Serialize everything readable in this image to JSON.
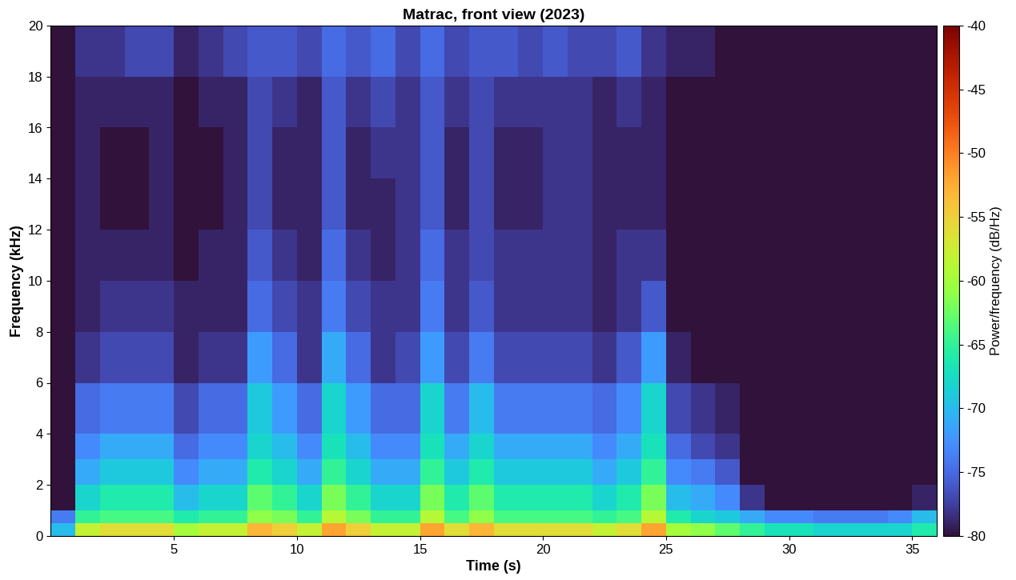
{
  "chart_data": {
    "type": "heatmap",
    "title": "Matrac, front view (2023)",
    "x_label": "Time (s)",
    "y_label": "Frequency (kHz)",
    "xlim": [
      0,
      36
    ],
    "xticks": [
      5,
      10,
      15,
      20,
      25,
      30,
      35
    ],
    "ylim": [
      0,
      20
    ],
    "yticks": [
      0,
      2,
      4,
      6,
      8,
      10,
      12,
      14,
      16,
      18,
      20
    ],
    "colorbar_label": "Power/frequency (dB/Hz)",
    "colorbar_range": [
      -80,
      -40
    ],
    "colorbar_ticks": [
      -80,
      -75,
      -70,
      -65,
      -60,
      -55,
      -50,
      -45,
      -40
    ],
    "x_edges": [
      0,
      1,
      2,
      3,
      4,
      5,
      6,
      7,
      8,
      9,
      10,
      11,
      12,
      13,
      14,
      15,
      16,
      17,
      18,
      19,
      20,
      21,
      22,
      23,
      24,
      25,
      26,
      27,
      28,
      29,
      30,
      31,
      32,
      33,
      34,
      35,
      36
    ],
    "y_edges": [
      0,
      0.5,
      1,
      2,
      3,
      4,
      6,
      8,
      10,
      12,
      14,
      16,
      18,
      20
    ],
    "cells": [
      [
        -70,
        -58,
        -56,
        -56,
        -56,
        -60,
        -58,
        -58,
        -53,
        -55,
        -58,
        -52,
        -55,
        -58,
        -58,
        -52,
        -56,
        -53,
        -56,
        -56,
        -56,
        -56,
        -58,
        -56,
        -52,
        -60,
        -61,
        -63,
        -65,
        -67,
        -67,
        -68,
        -68,
        -68,
        -68,
        -66
      ],
      [
        -74,
        -65,
        -64,
        -64,
        -64,
        -66,
        -65,
        -65,
        -61,
        -62,
        -65,
        -59,
        -62,
        -65,
        -65,
        -59,
        -64,
        -61,
        -64,
        -64,
        -64,
        -64,
        -65,
        -64,
        -59,
        -66,
        -68,
        -69,
        -71,
        -73,
        -73,
        -74,
        -74,
        -74,
        -73,
        -70
      ],
      [
        -80,
        -68,
        -66,
        -66,
        -66,
        -70,
        -68,
        -68,
        -63,
        -65,
        -68,
        -62,
        -65,
        -68,
        -68,
        -62,
        -66,
        -63,
        -66,
        -66,
        -66,
        -66,
        -68,
        -66,
        -62,
        -70,
        -71,
        -73,
        -78,
        -80,
        -80,
        -80,
        -80,
        -80,
        -80,
        -79
      ],
      [
        -80,
        -71,
        -69,
        -69,
        -69,
        -73,
        -71,
        -71,
        -66,
        -68,
        -71,
        -65,
        -68,
        -71,
        -71,
        -65,
        -69,
        -66,
        -69,
        -69,
        -69,
        -69,
        -71,
        -69,
        -65,
        -73,
        -74,
        -76,
        -80,
        -80,
        -80,
        -80,
        -80,
        -80,
        -80,
        -80
      ],
      [
        -80,
        -73,
        -71,
        -71,
        -71,
        -75,
        -73,
        -73,
        -68,
        -70,
        -73,
        -67,
        -70,
        -73,
        -73,
        -67,
        -71,
        -68,
        -71,
        -71,
        -71,
        -71,
        -73,
        -71,
        -67,
        -75,
        -77,
        -78,
        -80,
        -80,
        -80,
        -80,
        -80,
        -80,
        -80,
        -80
      ],
      [
        -80,
        -75,
        -74,
        -74,
        -74,
        -77,
        -75,
        -75,
        -69,
        -72,
        -75,
        -68,
        -72,
        -75,
        -75,
        -68,
        -74,
        -70,
        -74,
        -74,
        -74,
        -74,
        -75,
        -73,
        -68,
        -77,
        -78,
        -79,
        -80,
        -80,
        -80,
        -80,
        -80,
        -80,
        -80,
        -80
      ],
      [
        -80,
        -78,
        -77,
        -77,
        -77,
        -79,
        -78,
        -78,
        -72,
        -75,
        -78,
        -71,
        -75,
        -78,
        -77,
        -72,
        -77,
        -74,
        -77,
        -77,
        -77,
        -77,
        -78,
        -76,
        -72,
        -79,
        -80,
        -80,
        -80,
        -80,
        -80,
        -80,
        -80,
        -80,
        -80,
        -80
      ],
      [
        -80,
        -79,
        -78,
        -78,
        -78,
        -79,
        -79,
        -79,
        -75,
        -77,
        -78,
        -74,
        -77,
        -78,
        -78,
        -74,
        -78,
        -76,
        -78,
        -78,
        -78,
        -78,
        -79,
        -78,
        -76,
        -80,
        -80,
        -80,
        -80,
        -80,
        -80,
        -80,
        -80,
        -80,
        -80,
        -80
      ],
      [
        -80,
        -79,
        -79,
        -79,
        -79,
        -80,
        -79,
        -79,
        -76,
        -78,
        -79,
        -75,
        -78,
        -79,
        -78,
        -75,
        -78,
        -77,
        -78,
        -78,
        -78,
        -78,
        -79,
        -78,
        -78,
        -80,
        -80,
        -80,
        -80,
        -80,
        -80,
        -80,
        -80,
        -80,
        -80,
        -80
      ],
      [
        -80,
        -79,
        -80,
        -80,
        -79,
        -80,
        -80,
        -79,
        -77,
        -79,
        -79,
        -76,
        -79,
        -79,
        -78,
        -76,
        -79,
        -77,
        -79,
        -79,
        -78,
        -78,
        -79,
        -79,
        -79,
        -80,
        -80,
        -80,
        -80,
        -80,
        -80,
        -80,
        -80,
        -80,
        -80,
        -80
      ],
      [
        -80,
        -79,
        -80,
        -80,
        -79,
        -80,
        -80,
        -79,
        -77,
        -79,
        -79,
        -76,
        -79,
        -78,
        -78,
        -76,
        -79,
        -77,
        -79,
        -79,
        -78,
        -78,
        -79,
        -79,
        -79,
        -80,
        -80,
        -80,
        -80,
        -80,
        -80,
        -80,
        -80,
        -80,
        -80,
        -80
      ],
      [
        -80,
        -79,
        -79,
        -79,
        -79,
        -80,
        -79,
        -79,
        -77,
        -78,
        -79,
        -76,
        -78,
        -77,
        -78,
        -76,
        -78,
        -77,
        -78,
        -78,
        -78,
        -78,
        -79,
        -78,
        -79,
        -80,
        -80,
        -80,
        -80,
        -80,
        -80,
        -80,
        -80,
        -80,
        -80,
        -80
      ],
      [
        -80,
        -78,
        -78,
        -77,
        -77,
        -79,
        -78,
        -77,
        -76,
        -76,
        -77,
        -75,
        -76,
        -75,
        -77,
        -75,
        -77,
        -76,
        -76,
        -77,
        -76,
        -77,
        -77,
        -76,
        -78,
        -79,
        -79,
        -80,
        -80,
        -80,
        -80,
        -80,
        -80,
        -80,
        -80,
        -80
      ]
    ]
  }
}
